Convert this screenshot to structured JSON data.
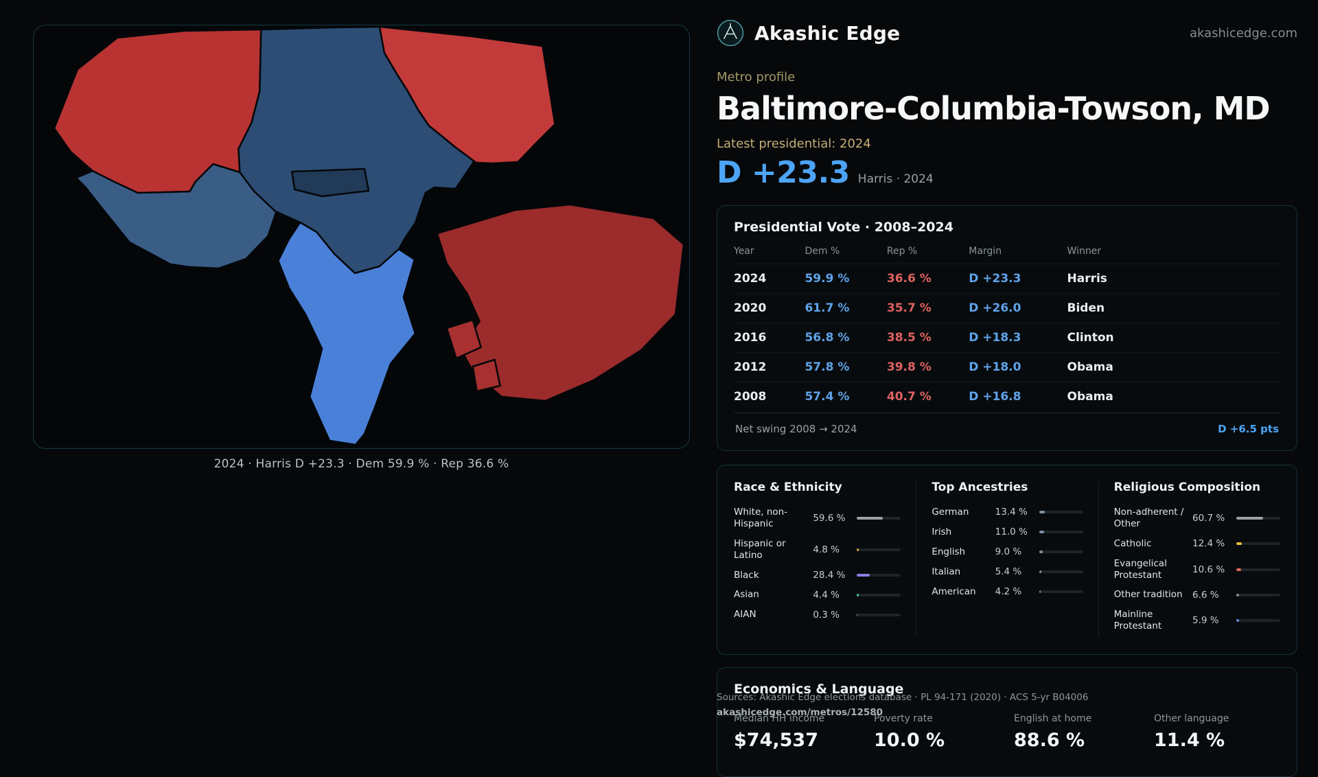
{
  "colors": {
    "dem_blue": "#4da4f6",
    "rep_red": "#df6262",
    "gold": "#c7ae77",
    "khaki": "#a59868",
    "card_border": "#133339"
  },
  "header": {
    "brand": "Akashic Edge",
    "domain": "akashicedge.com"
  },
  "profile": {
    "eyebrow": "Metro profile",
    "title": "Baltimore-Columbia-Towson, MD",
    "latest_label": "Latest presidential: 2024",
    "margin": "D +23.3",
    "margin_sub": "Harris · 2024"
  },
  "map": {
    "caption": "2024 · Harris D +23.3 · Dem 59.9 % · Rep 36.6 %",
    "regions": [
      {
        "id": "region-northwest",
        "fill": "#b93333"
      },
      {
        "id": "region-north-central",
        "fill": "#2d4d74"
      },
      {
        "id": "region-northeast",
        "fill": "#c23a3a"
      },
      {
        "id": "region-west",
        "fill": "#3a5d86"
      },
      {
        "id": "region-city",
        "fill": "#203a57"
      },
      {
        "id": "region-south",
        "fill": "#4b80d8"
      },
      {
        "id": "region-east",
        "fill": "#9c2b2b"
      },
      {
        "id": "region-fragment-1",
        "fill": "#a83030"
      },
      {
        "id": "region-fragment-2",
        "fill": "#a83030"
      }
    ]
  },
  "presidential": {
    "title": "Presidential Vote · 2008–2024",
    "columns": [
      "Year",
      "Dem %",
      "Rep %",
      "Margin",
      "Winner"
    ],
    "rows": [
      {
        "year": "2024",
        "dem": "59.9 %",
        "rep": "36.6 %",
        "margin": "D +23.3",
        "winner": "Harris"
      },
      {
        "year": "2020",
        "dem": "61.7 %",
        "rep": "35.7 %",
        "margin": "D +26.0",
        "winner": "Biden"
      },
      {
        "year": "2016",
        "dem": "56.8 %",
        "rep": "38.5 %",
        "margin": "D +18.3",
        "winner": "Clinton"
      },
      {
        "year": "2012",
        "dem": "57.8 %",
        "rep": "39.8 %",
        "margin": "D +18.0",
        "winner": "Obama"
      },
      {
        "year": "2008",
        "dem": "57.4 %",
        "rep": "40.7 %",
        "margin": "D +16.8",
        "winner": "Obama"
      }
    ],
    "net_swing_label": "Net swing 2008 → 2024",
    "net_swing_value": "D +6.5 pts"
  },
  "demographics": {
    "race": {
      "title": "Race & Ethnicity",
      "items": [
        {
          "label": "White, non-Hispanic",
          "value": "59.6 %",
          "pct": 59.6,
          "color": "#9aa1a7"
        },
        {
          "label": "Hispanic or Latino",
          "value": "4.8 %",
          "pct": 4.8,
          "color": "#e2a23b"
        },
        {
          "label": "Black",
          "value": "28.4 %",
          "pct": 28.4,
          "color": "#8d7de4"
        },
        {
          "label": "Asian",
          "value": "4.4 %",
          "pct": 4.4,
          "color": "#3cc8a4"
        },
        {
          "label": "AIAN",
          "value": "0.3 %",
          "pct": 0.3,
          "color": "#9aa1a7"
        }
      ]
    },
    "ancestries": {
      "title": "Top Ancestries",
      "items": [
        {
          "label": "German",
          "value": "13.4 %",
          "pct": 13.4,
          "color": "#7e8fa0"
        },
        {
          "label": "Irish",
          "value": "11.0 %",
          "pct": 11.0,
          "color": "#7e8fa0"
        },
        {
          "label": "English",
          "value": "9.0 %",
          "pct": 9.0,
          "color": "#7e8fa0"
        },
        {
          "label": "Italian",
          "value": "5.4 %",
          "pct": 5.4,
          "color": "#7e8fa0"
        },
        {
          "label": "American",
          "value": "4.2 %",
          "pct": 4.2,
          "color": "#7e8fa0"
        }
      ]
    },
    "religion": {
      "title": "Religious Composition",
      "items": [
        {
          "label": "Non-adherent / Other",
          "value": "60.7 %",
          "pct": 60.7,
          "color": "#9aa1a7"
        },
        {
          "label": "Catholic",
          "value": "12.4 %",
          "pct": 12.4,
          "color": "#e3bd3a"
        },
        {
          "label": "Evangelical Protestant",
          "value": "10.6 %",
          "pct": 10.6,
          "color": "#e06a57"
        },
        {
          "label": "Other tradition",
          "value": "6.6 %",
          "pct": 6.6,
          "color": "#8b9298"
        },
        {
          "label": "Mainline Protestant",
          "value": "5.9 %",
          "pct": 5.9,
          "color": "#5a8ee2"
        }
      ]
    }
  },
  "economics": {
    "title": "Economics & Language",
    "stats": [
      {
        "label": "Median HH income",
        "value": "$74,537"
      },
      {
        "label": "Poverty rate",
        "value": "10.0 %"
      },
      {
        "label": "English at home",
        "value": "88.6 %"
      },
      {
        "label": "Other language",
        "value": "11.4 %"
      }
    ]
  },
  "footer": {
    "sources": "Sources: Akashic Edge elections database · PL 94-171 (2020) · ACS 5-yr B04006",
    "permalink": "akashicedge.com/metros/12580"
  }
}
